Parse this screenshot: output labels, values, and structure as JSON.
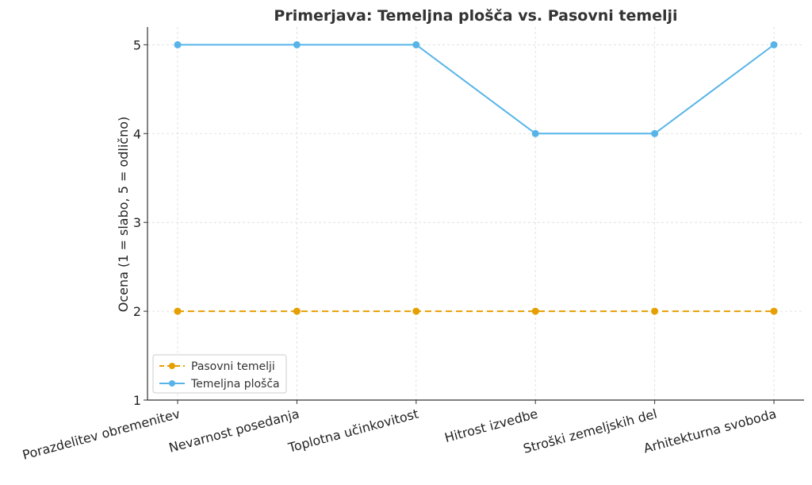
{
  "chart_data": {
    "type": "line",
    "title": "Primerjava: Temeljna plošča vs. Pasovni temelji",
    "xlabel": "",
    "ylabel": "Ocena (1 = slabo, 5 = odlično)",
    "ylim": [
      1,
      5.2
    ],
    "yticks": [
      "1",
      "2",
      "3",
      "4",
      "5"
    ],
    "categories": [
      "Porazdelitev obremenitev",
      "Nevarnost posedanja",
      "Toplotna učinkovitost",
      "Hitrost izvedbe",
      "Stroški zemeljskih del",
      "Arhitekturna svoboda"
    ],
    "grid": true,
    "legend_position": "bottom-left",
    "series": [
      {
        "name": "Pasovni temelji",
        "values": [
          2,
          2,
          2,
          2,
          2,
          2
        ],
        "color": "#E69F00",
        "style": "dashed"
      },
      {
        "name": "Temeljna plošča",
        "values": [
          5,
          5,
          5,
          4,
          4,
          5
        ],
        "color": "#56B4E9",
        "style": "solid"
      }
    ]
  }
}
